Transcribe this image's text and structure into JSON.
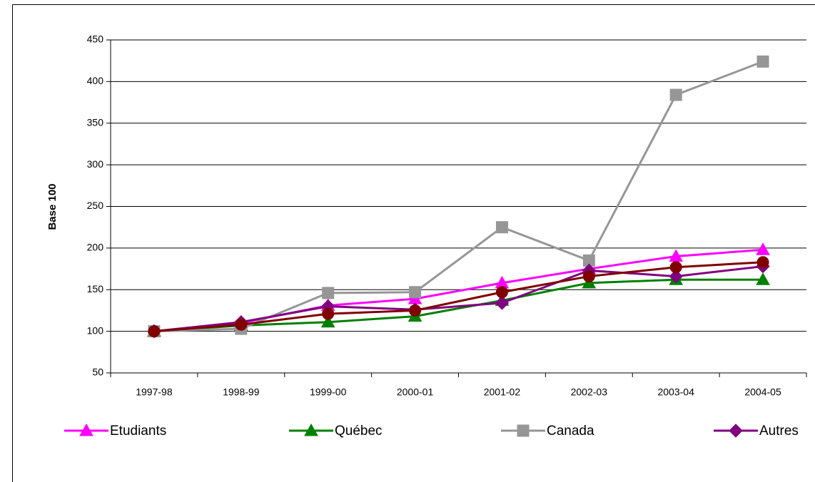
{
  "chart_data": {
    "type": "line",
    "ylabel": "Base 100",
    "categories": [
      "1997-98",
      "1998-99",
      "1999-00",
      "2000-01",
      "2001-02",
      "2002-03",
      "2003-04",
      "2004-05"
    ],
    "series": [
      {
        "name": "Etudiants",
        "color": "#ff00ff",
        "marker": "triangle",
        "values": [
          100,
          110,
          131,
          139,
          158,
          175,
          190,
          198
        ]
      },
      {
        "name": "Québec",
        "color": "#008000",
        "marker": "triangle",
        "values": [
          100,
          107,
          111,
          118,
          137,
          158,
          162,
          162
        ]
      },
      {
        "name": "Canada",
        "color": "#969696",
        "marker": "square",
        "values": [
          100,
          103,
          146,
          147,
          225,
          185,
          384,
          424
        ]
      },
      {
        "name": "Autres",
        "color": "#800080",
        "marker": "diamond",
        "values": [
          100,
          111,
          130,
          126,
          134,
          173,
          166,
          178
        ]
      },
      {
        "color": "#800000",
        "marker": "circle",
        "values": [
          100,
          108,
          121,
          125,
          147,
          166,
          177,
          183
        ]
      }
    ],
    "ylim": [
      50,
      450
    ],
    "yticks": [
      50,
      100,
      150,
      200,
      250,
      300,
      350,
      400,
      450
    ],
    "grid": true
  }
}
